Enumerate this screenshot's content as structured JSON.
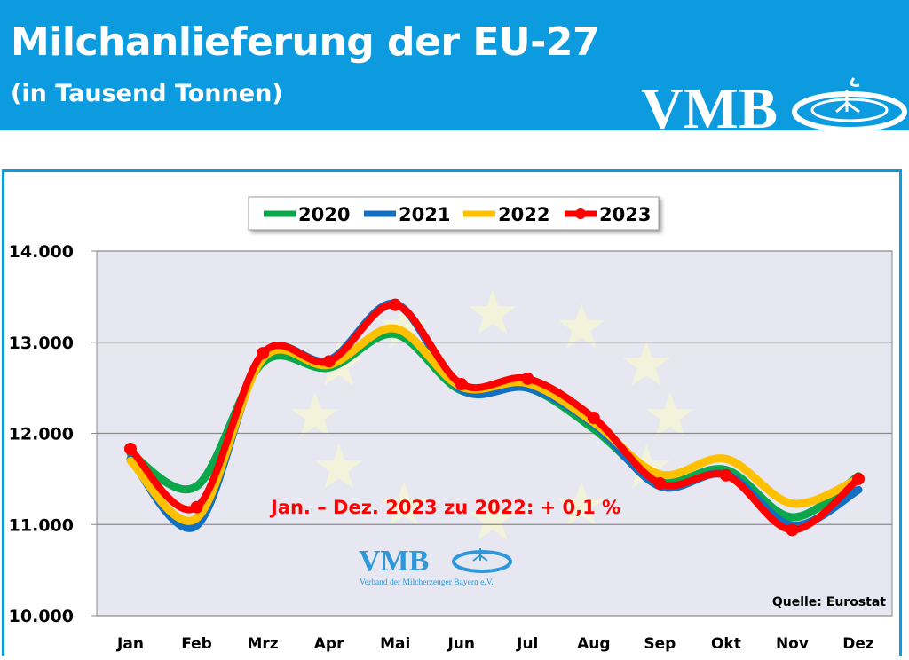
{
  "header": {
    "title": "Milchanlieferung der EU-27",
    "subtitle": "(in Tausend Tonnen)",
    "logo_text": "VMB"
  },
  "annotation": "Jan. – Dez. 2023 zu 2022: + 0,1 %",
  "source": "Quelle: Eurostat",
  "watermark": {
    "logo_text": "VMB",
    "caption": "Verband der Milcherzeuger Bayern e.V."
  },
  "colors": {
    "header": "#0d9be0",
    "plot_bg": "#e6e7f0",
    "annotation": "#ff0000"
  },
  "chart_data": {
    "type": "line",
    "smooth": true,
    "categories": [
      "Jan",
      "Feb",
      "Mrz",
      "Apr",
      "Mai",
      "Jun",
      "Jul",
      "Aug",
      "Sep",
      "Okt",
      "Nov",
      "Dez"
    ],
    "ylim": [
      10000,
      14000
    ],
    "yticks": [
      10000,
      11000,
      12000,
      13000,
      14000
    ],
    "ytick_labels": [
      "10.000",
      "11.000",
      "12.000",
      "13.000",
      "14.000"
    ],
    "grid": true,
    "legend_position": "top",
    "series": [
      {
        "name": "2020",
        "color": "#0aa84b",
        "markers": false,
        "values": [
          11780,
          11420,
          12780,
          12720,
          13090,
          12470,
          12500,
          12050,
          11470,
          11600,
          11080,
          11530
        ]
      },
      {
        "name": "2021",
        "color": "#1370c0",
        "markers": false,
        "values": [
          11720,
          10990,
          12850,
          12800,
          13420,
          12480,
          12500,
          12100,
          11420,
          11550,
          10990,
          11380
        ]
      },
      {
        "name": "2022",
        "color": "#ffc000",
        "markers": false,
        "values": [
          11700,
          11070,
          12820,
          12750,
          13150,
          12510,
          12550,
          12120,
          11550,
          11720,
          11230,
          11500
        ]
      },
      {
        "name": "2023",
        "color": "#ff0000",
        "markers": true,
        "values": [
          11830,
          11190,
          12880,
          12790,
          13410,
          12540,
          12600,
          12170,
          11450,
          11540,
          10940,
          11500
        ]
      }
    ]
  }
}
